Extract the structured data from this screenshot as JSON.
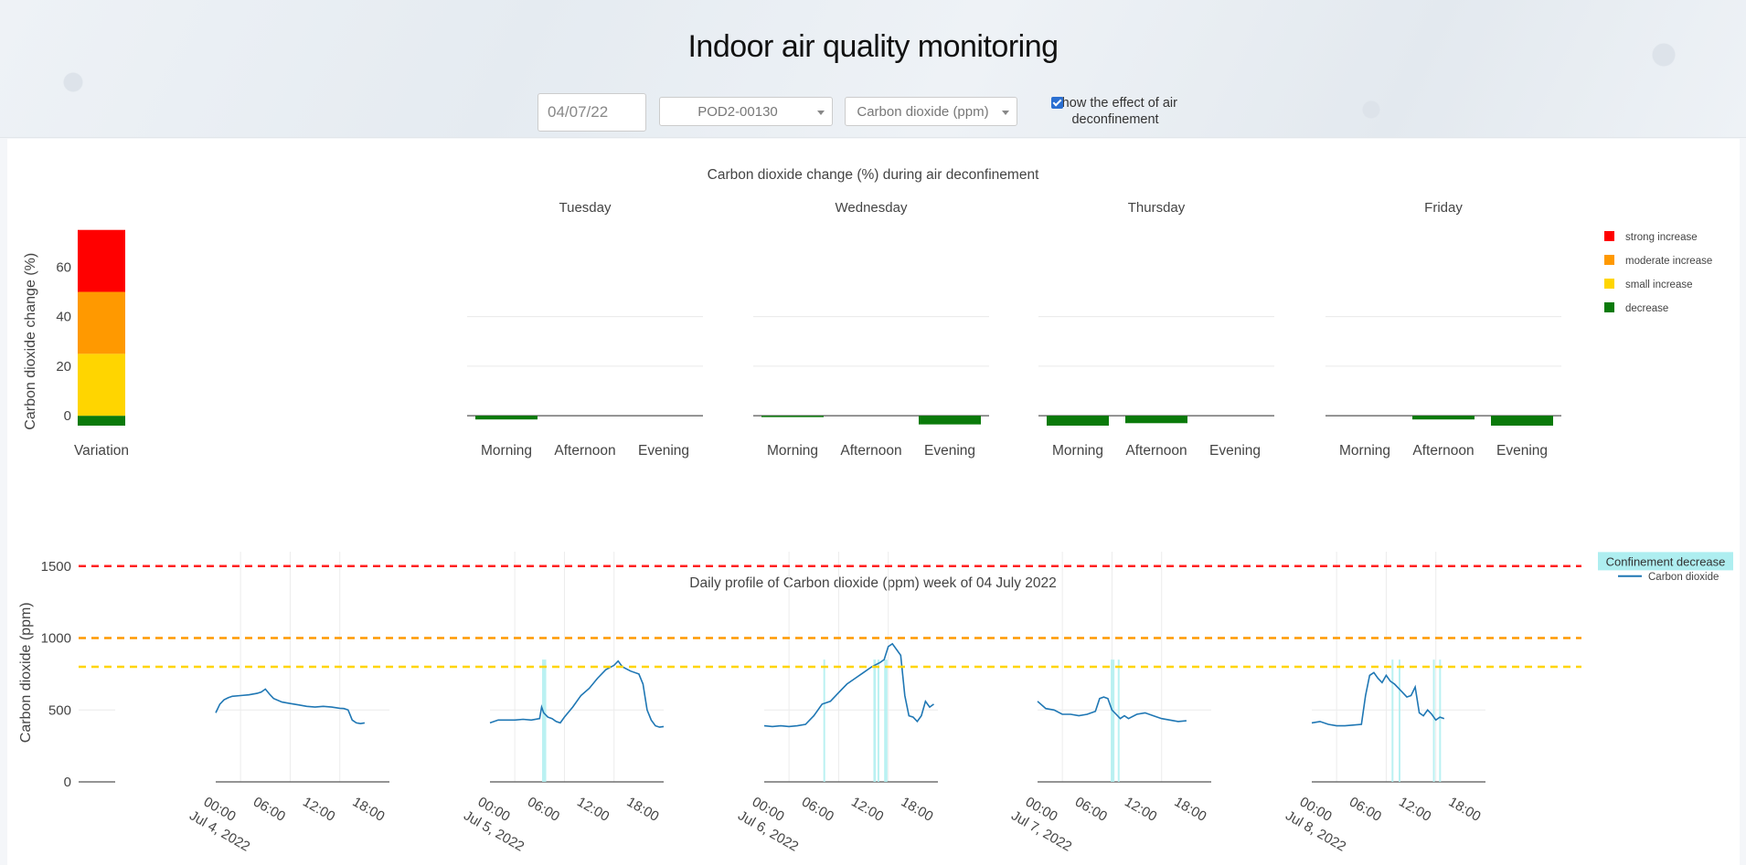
{
  "header": {
    "title": "Indoor air quality monitoring",
    "date_value": "04/07/22",
    "pod_selected": "POD2-00130",
    "parameter_selected": "Carbon dioxide (ppm)",
    "checkbox_label": "Show the effect of air deconfinement",
    "checkbox_checked": true
  },
  "colors": {
    "strong_increase": "#ff0000",
    "moderate_increase": "#ff9900",
    "small_increase": "#ffd500",
    "decrease": "#0a7a0a",
    "series": "#1f77b4",
    "confinement": "#aeeef0"
  },
  "chart_data": [
    {
      "type": "bar",
      "title": "Carbon dioxide  change (%) during air deconfinement",
      "ylabel": "Carbon dioxide  change (%)",
      "yticks": [
        0,
        20,
        40,
        60
      ],
      "ylim": [
        -4,
        76
      ],
      "scale": {
        "category": "Variation",
        "segments": [
          {
            "name": "decrease",
            "from": -4,
            "to": 0
          },
          {
            "name": "small increase",
            "from": 0,
            "to": 25
          },
          {
            "name": "moderate increase",
            "from": 25,
            "to": 50
          },
          {
            "name": "strong increase",
            "from": 50,
            "to": 75
          }
        ]
      },
      "categories": [
        "Morning",
        "Afternoon",
        "Evening"
      ],
      "days": [
        {
          "name": "Tuesday",
          "values": [
            -1.5,
            0,
            0
          ]
        },
        {
          "name": "Wednesday",
          "values": [
            -0.5,
            0,
            -3.5
          ]
        },
        {
          "name": "Thursday",
          "values": [
            -4,
            -3,
            0
          ]
        },
        {
          "name": "Friday",
          "values": [
            0,
            -1.5,
            -4
          ]
        }
      ],
      "legend": {
        "position": "right",
        "entries": [
          "strong increase",
          "moderate increase",
          "small increase",
          "decrease"
        ]
      }
    },
    {
      "type": "line",
      "title": "Daily profile of Carbon dioxide (ppm) week of 04 July 2022",
      "ylabel": "Carbon dioxide (ppm)",
      "yticks": [
        0,
        500,
        1000,
        1500
      ],
      "ylim": [
        0,
        1600
      ],
      "thresholds": [
        {
          "value": 1500,
          "color": "#ff2020"
        },
        {
          "value": 1000,
          "color": "#ff9900"
        },
        {
          "value": 800,
          "color": "#ffd500"
        }
      ],
      "xticks": [
        "00:00",
        "06:00",
        "12:00",
        "18:00"
      ],
      "legend": {
        "position": "right",
        "title": "Confinement decrease",
        "series_name": "Carbon dioxide"
      },
      "days": [
        {
          "date": "Jul 4, 2022",
          "points": [
            [
              0,
              480
            ],
            [
              1,
              540
            ],
            [
              2,
              570
            ],
            [
              3,
              585
            ],
            [
              4,
              595
            ],
            [
              6,
              600
            ],
            [
              8,
              605
            ],
            [
              10,
              615
            ],
            [
              11,
              625
            ],
            [
              12,
              645
            ],
            [
              13,
              610
            ],
            [
              14,
              580
            ],
            [
              16,
              555
            ],
            [
              18,
              545
            ],
            [
              20,
              535
            ],
            [
              22,
              525
            ],
            [
              24,
              520
            ],
            [
              26,
              525
            ],
            [
              28,
              520
            ],
            [
              30,
              512
            ],
            [
              31,
              510
            ],
            [
              32,
              500
            ],
            [
              33,
              430
            ],
            [
              34,
              410
            ],
            [
              35,
              405
            ],
            [
              36,
              410
            ]
          ],
          "shaded": []
        },
        {
          "date": "Jul 5, 2022",
          "points": [
            [
              0,
              410
            ],
            [
              2,
              430
            ],
            [
              4,
              430
            ],
            [
              6,
              430
            ],
            [
              8,
              435
            ],
            [
              10,
              430
            ],
            [
              12,
              440
            ],
            [
              12.5,
              520
            ],
            [
              13,
              480
            ],
            [
              14,
              450
            ],
            [
              15,
              440
            ],
            [
              16,
              420
            ],
            [
              17,
              410
            ],
            [
              18,
              450
            ],
            [
              20,
              520
            ],
            [
              22,
              600
            ],
            [
              24,
              650
            ],
            [
              26,
              720
            ],
            [
              28,
              780
            ],
            [
              30,
              810
            ],
            [
              31,
              840
            ],
            [
              32,
              800
            ],
            [
              34,
              770
            ],
            [
              36,
              750
            ],
            [
              37,
              680
            ],
            [
              38,
              500
            ],
            [
              39,
              430
            ],
            [
              40,
              390
            ],
            [
              41,
              380
            ],
            [
              42,
              385
            ]
          ],
          "shaded": [
            [
              12.6,
              13.6
            ]
          ]
        },
        {
          "date": "Jul 6, 2022",
          "points": [
            [
              0,
              390
            ],
            [
              2,
              385
            ],
            [
              4,
              390
            ],
            [
              6,
              385
            ],
            [
              8,
              390
            ],
            [
              10,
              400
            ],
            [
              12,
              460
            ],
            [
              14,
              540
            ],
            [
              16,
              560
            ],
            [
              18,
              620
            ],
            [
              20,
              680
            ],
            [
              22,
              720
            ],
            [
              24,
              760
            ],
            [
              26,
              800
            ],
            [
              28,
              830
            ],
            [
              29,
              850
            ],
            [
              30,
              940
            ],
            [
              31,
              960
            ],
            [
              32,
              920
            ],
            [
              33,
              880
            ],
            [
              34,
              600
            ],
            [
              35,
              460
            ],
            [
              36,
              450
            ],
            [
              37,
              420
            ],
            [
              38,
              460
            ],
            [
              39,
              560
            ],
            [
              40,
              520
            ],
            [
              41,
              540
            ]
          ],
          "shaded": [
            [
              14.3,
              14.6
            ],
            [
              26.4,
              27.0
            ],
            [
              27.4,
              27.7
            ],
            [
              29.0,
              29.8
            ]
          ]
        },
        {
          "date": "Jul 7, 2022",
          "points": [
            [
              0,
              560
            ],
            [
              2,
              510
            ],
            [
              4,
              500
            ],
            [
              6,
              470
            ],
            [
              8,
              470
            ],
            [
              10,
              460
            ],
            [
              12,
              470
            ],
            [
              14,
              490
            ],
            [
              15,
              580
            ],
            [
              16,
              590
            ],
            [
              17,
              580
            ],
            [
              18,
              500
            ],
            [
              19,
              470
            ],
            [
              20,
              440
            ],
            [
              21,
              460
            ],
            [
              22,
              440
            ],
            [
              24,
              470
            ],
            [
              26,
              480
            ],
            [
              28,
              460
            ],
            [
              30,
              440
            ],
            [
              32,
              430
            ],
            [
              34,
              420
            ],
            [
              36,
              425
            ]
          ],
          "shaded": [
            [
              17.7,
              18.6
            ],
            [
              19.4,
              19.7
            ]
          ]
        },
        {
          "date": "Jul 8, 2022",
          "points": [
            [
              0,
              410
            ],
            [
              2,
              420
            ],
            [
              4,
              400
            ],
            [
              6,
              390
            ],
            [
              8,
              390
            ],
            [
              10,
              395
            ],
            [
              12,
              400
            ],
            [
              13,
              600
            ],
            [
              14,
              740
            ],
            [
              15,
              760
            ],
            [
              16,
              720
            ],
            [
              17,
              690
            ],
            [
              18,
              740
            ],
            [
              19,
              700
            ],
            [
              20,
              680
            ],
            [
              21,
              650
            ],
            [
              22,
              620
            ],
            [
              23,
              590
            ],
            [
              24,
              600
            ],
            [
              25,
              660
            ],
            [
              26,
              480
            ],
            [
              27,
              460
            ],
            [
              28,
              500
            ],
            [
              29,
              470
            ],
            [
              30,
              430
            ],
            [
              31,
              450
            ],
            [
              32,
              440
            ]
          ],
          "shaded": [
            [
              19.3,
              19.6
            ],
            [
              21.0,
              21.3
            ],
            [
              29.3,
              29.6
            ],
            [
              30.8,
              31.2
            ]
          ]
        }
      ]
    }
  ]
}
